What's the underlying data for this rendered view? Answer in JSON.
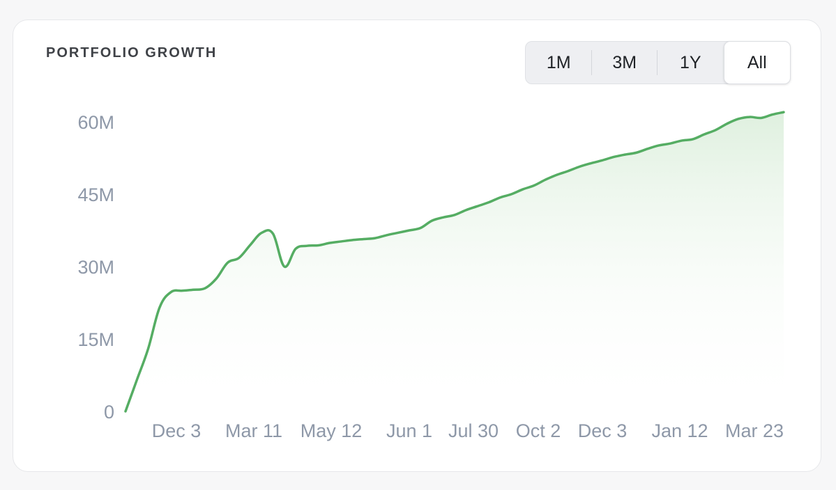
{
  "card": {
    "title": "PORTFOLIO GROWTH"
  },
  "range_selector": {
    "options": [
      "1M",
      "3M",
      "1Y",
      "All"
    ],
    "selected": "All"
  },
  "colors": {
    "line": "#55ad63",
    "fill_top": "#dff0df",
    "text_muted": "#8e98a8",
    "title": "#3f4247"
  },
  "chart_data": {
    "type": "area",
    "title": "PORTFOLIO GROWTH",
    "xlabel": "",
    "ylabel": "",
    "ylim": [
      0,
      62000000
    ],
    "y_ticks": [
      {
        "value": 0,
        "label": "0"
      },
      {
        "value": 15000000,
        "label": "15M"
      },
      {
        "value": 30000000,
        "label": "30M"
      },
      {
        "value": 45000000,
        "label": "45M"
      },
      {
        "value": 60000000,
        "label": "60M"
      }
    ],
    "x_tick_labels": [
      "Dec 3",
      "Mar 11",
      "May 12",
      "Jun 1",
      "Jul 30",
      "Oct 2",
      "Dec 3",
      "Jan 12",
      "Mar 23"
    ],
    "grid": false,
    "legend": "none",
    "series": [
      {
        "values": [
          0,
          6500000,
          13000000,
          21500000,
          24700000,
          25000000,
          25200000,
          25500000,
          27500000,
          30800000,
          31800000,
          34500000,
          37000000,
          36800000,
          30000000,
          33700000,
          34300000,
          34400000,
          34900000,
          35200000,
          35500000,
          35700000,
          35900000,
          36500000,
          37000000,
          37500000,
          38000000,
          39500000,
          40200000,
          40700000,
          41700000,
          42500000,
          43300000,
          44300000,
          45000000,
          46000000,
          46800000,
          48000000,
          49000000,
          49800000,
          50700000,
          51400000,
          52000000,
          52700000,
          53200000,
          53600000,
          54400000,
          55100000,
          55500000,
          56100000,
          56400000,
          57400000,
          58300000,
          59600000,
          60600000,
          61000000,
          60800000,
          61500000,
          62000000
        ]
      }
    ]
  }
}
